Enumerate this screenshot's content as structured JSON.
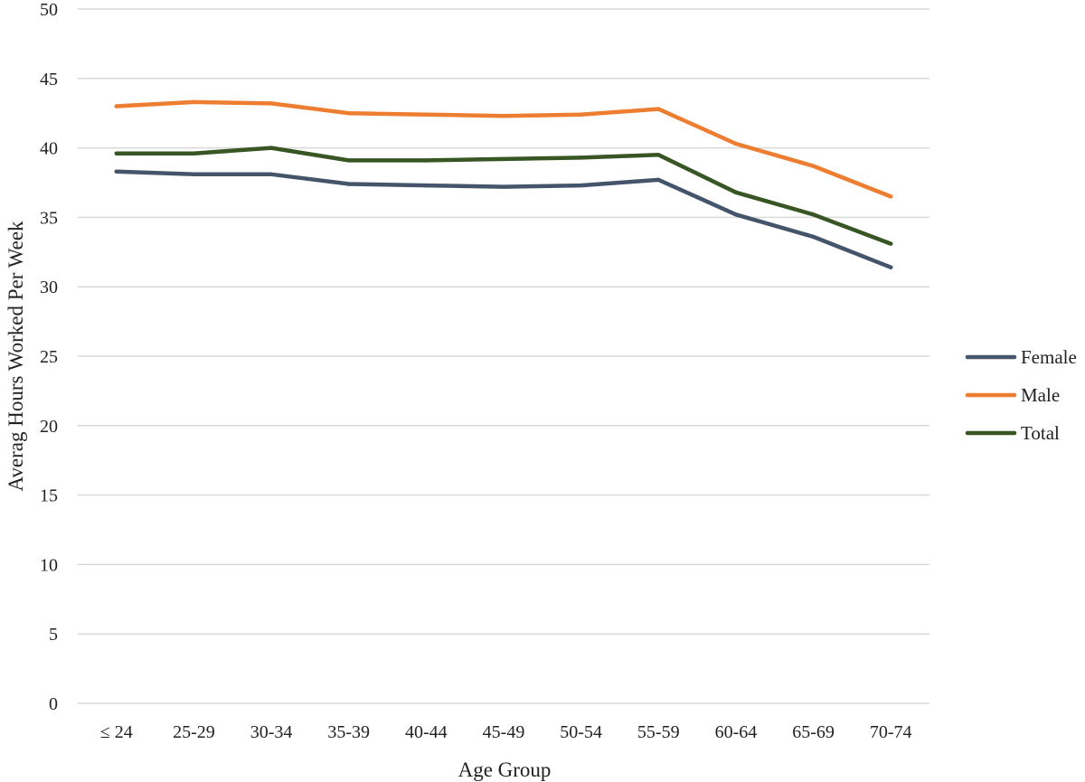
{
  "chart_data": {
    "type": "line",
    "categories": [
      "≤ 24",
      "25-29",
      "30-34",
      "35-39",
      "40-44",
      "45-49",
      "50-54",
      "55-59",
      "60-64",
      "65-69",
      "70-74"
    ],
    "series": [
      {
        "name": "Female",
        "color": "#44546a",
        "values": [
          38.3,
          38.1,
          38.1,
          37.4,
          37.3,
          37.2,
          37.3,
          37.7,
          35.2,
          33.6,
          31.4
        ]
      },
      {
        "name": "Male",
        "color": "#ed7d31",
        "values": [
          43.0,
          43.3,
          43.2,
          42.5,
          42.4,
          42.3,
          42.4,
          42.8,
          40.3,
          38.7,
          36.5
        ]
      },
      {
        "name": "Total",
        "color": "#375623",
        "values": [
          39.6,
          39.6,
          40.0,
          39.1,
          39.1,
          39.2,
          39.3,
          39.5,
          36.8,
          35.2,
          33.1
        ]
      }
    ],
    "yticks": [
      "0",
      "5",
      "10",
      "15",
      "20",
      "25",
      "30",
      "35",
      "40",
      "45",
      "50"
    ],
    "ylim": [
      0,
      50
    ],
    "xlabel": "Age Group",
    "ylabel": "Averag Hours Worked Per Week",
    "grid": true,
    "legend_position": "right"
  }
}
